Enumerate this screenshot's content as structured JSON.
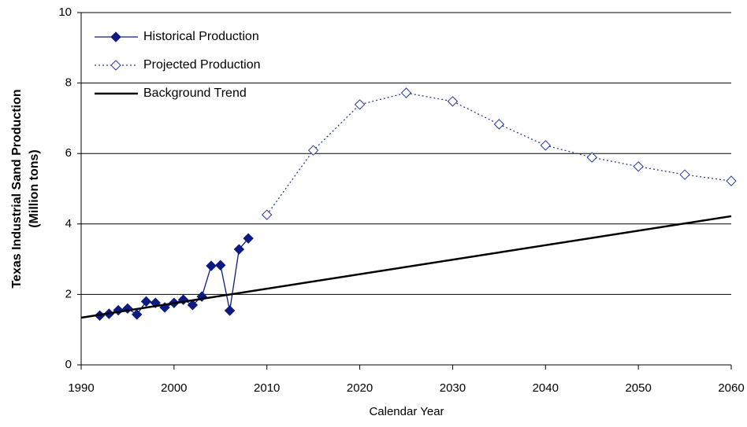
{
  "chart_data": {
    "type": "line",
    "xlabel": "Calendar Year",
    "ylabel": [
      "Texas Industrial Sand Production",
      "(Million tons)"
    ],
    "xlim": [
      1990,
      2060
    ],
    "xticks": [
      1990,
      2000,
      2010,
      2020,
      2030,
      2040,
      2050,
      2060
    ],
    "ylim": [
      0,
      10
    ],
    "yticks": [
      0,
      2,
      4,
      6,
      8,
      10
    ],
    "grid": true,
    "legend": "upper left",
    "series": [
      {
        "name": "Historical Production",
        "color": "#0d1a80",
        "line_style": "solid",
        "marker": "filled-diamond",
        "x": [
          1992,
          1993,
          1994,
          1995,
          1996,
          1997,
          1998,
          1999,
          2000,
          2001,
          2002,
          2003,
          2004,
          2005,
          2006,
          2007,
          2008
        ],
        "values": [
          1.4,
          1.45,
          1.55,
          1.6,
          1.43,
          1.8,
          1.76,
          1.63,
          1.76,
          1.85,
          1.7,
          1.94,
          2.81,
          2.83,
          1.54,
          3.28,
          3.59
        ]
      },
      {
        "name": "Projected Production",
        "color": "#2a3a9c",
        "line_style": "dotted",
        "marker": "open-diamond",
        "x": [
          2010,
          2015,
          2020,
          2025,
          2030,
          2035,
          2040,
          2045,
          2050,
          2055,
          2060
        ],
        "values": [
          4.26,
          6.09,
          7.39,
          7.72,
          7.48,
          6.83,
          6.23,
          5.89,
          5.63,
          5.4,
          5.22
        ]
      },
      {
        "name": "Background Trend",
        "color": "#000000",
        "line_style": "thick",
        "marker": null,
        "x": [
          1990,
          2060
        ],
        "values": [
          1.34,
          4.22
        ]
      }
    ]
  }
}
